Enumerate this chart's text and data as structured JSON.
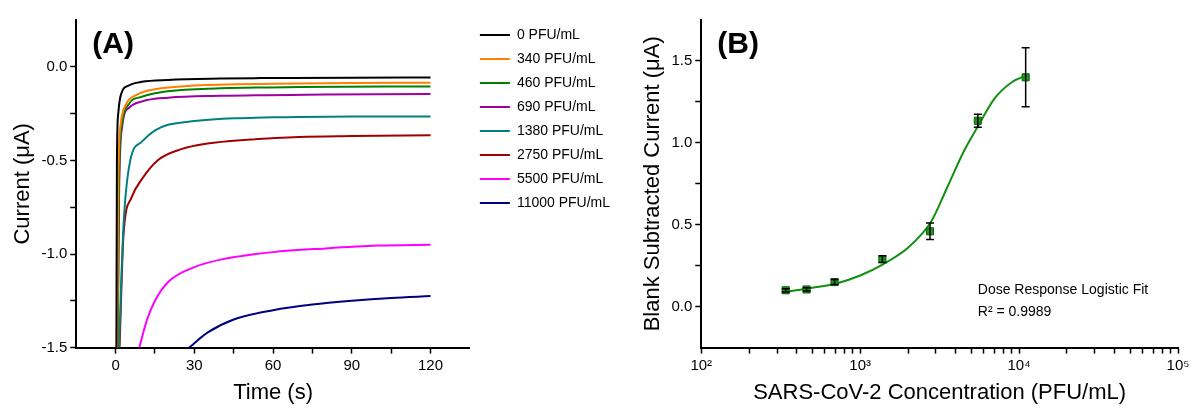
{
  "chart_data": [
    {
      "type": "line",
      "title": "(A)",
      "xlabel": "Time (s)",
      "ylabel": "Current (μA)",
      "xlim": [
        -15,
        135
      ],
      "xticks": [
        0,
        30,
        60,
        90,
        120,
        {
          "value": 15,
          "label": null
        },
        {
          "value": 45,
          "label": null
        },
        {
          "value": 75,
          "label": null
        },
        {
          "value": 105,
          "label": null
        }
      ],
      "ylim": [
        -1.5,
        0.25
      ],
      "yticks": [
        -1.5,
        {
          "value": -1,
          "label": "-1.0"
        },
        -0.5,
        {
          "value": 0,
          "label": "0.0"
        },
        {
          "value": -1.25,
          "label": null
        },
        {
          "value": -0.75,
          "label": null
        },
        {
          "value": -0.25,
          "label": null
        }
      ],
      "grid": false,
      "legend": "right",
      "marker": "none",
      "series": [
        {
          "name": "0 PFU/mL",
          "color": "#000000",
          "x": [
            0.3,
            0.5,
            1,
            2,
            5,
            10,
            20,
            40,
            60,
            90,
            120
          ],
          "values": [
            -1.5,
            -0.5,
            -0.25,
            -0.15,
            -0.1,
            -0.08,
            -0.07,
            -0.063,
            -0.06,
            -0.058,
            -0.057
          ]
        },
        {
          "name": "340 PFU/mL",
          "color": "#ff8000",
          "x": [
            0.6,
            1,
            2,
            4,
            8,
            15,
            30,
            60,
            90,
            120
          ],
          "values": [
            -1.5,
            -0.6,
            -0.3,
            -0.2,
            -0.15,
            -0.12,
            -0.1,
            -0.09,
            -0.087,
            -0.085
          ]
        },
        {
          "name": "460 PFU/mL",
          "color": "#008000",
          "x": [
            0.8,
            1.3,
            2.5,
            5,
            10,
            20,
            40,
            70,
            120
          ],
          "values": [
            -1.5,
            -0.6,
            -0.3,
            -0.2,
            -0.16,
            -0.13,
            -0.115,
            -0.108,
            -0.105
          ]
        },
        {
          "name": "690 PFU/mL",
          "color": "#a000a0",
          "x": [
            0.8,
            1.3,
            2.5,
            5,
            10,
            20,
            40,
            80,
            120
          ],
          "values": [
            -1.5,
            -0.7,
            -0.32,
            -0.22,
            -0.185,
            -0.165,
            -0.155,
            -0.148,
            -0.145
          ]
        },
        {
          "name": "1380 PFU/mL",
          "color": "#008080",
          "x": [
            1.3,
            3,
            5.6,
            10,
            15,
            20,
            30,
            45,
            60,
            90,
            120
          ],
          "values": [
            -1.5,
            -0.85,
            -0.5,
            -0.4,
            -0.34,
            -0.31,
            -0.29,
            -0.275,
            -0.27,
            -0.265,
            -0.265
          ]
        },
        {
          "name": "2750 PFU/mL",
          "color": "#a00000",
          "x": [
            1.5,
            3,
            6,
            10,
            16,
            25,
            35,
            50,
            70,
            90,
            120
          ],
          "values": [
            -1.5,
            -0.9,
            -0.7,
            -0.6,
            -0.5,
            -0.44,
            -0.41,
            -0.39,
            -0.375,
            -0.37,
            -0.365
          ]
        },
        {
          "name": "5500 PFU/mL",
          "color": "#ff00ff",
          "x": [
            9,
            12,
            15,
            20,
            30,
            40,
            60,
            80,
            100,
            120
          ],
          "values": [
            -1.5,
            -1.35,
            -1.25,
            -1.15,
            -1.07,
            -1.03,
            -0.99,
            -0.97,
            -0.955,
            -0.95
          ]
        },
        {
          "name": "11000 PFU/mL",
          "color": "#000080",
          "x": [
            28,
            35,
            45,
            60,
            75,
            90,
            105,
            120
          ],
          "values": [
            -1.5,
            -1.42,
            -1.35,
            -1.3,
            -1.27,
            -1.25,
            -1.235,
            -1.225
          ]
        }
      ]
    },
    {
      "type": "scatter",
      "title": "(B)",
      "xlabel": "SARS-CoV-2 Concentration (PFU/mL)",
      "ylabel": "Blank Subtracted Current (μA)",
      "log": "x",
      "xlim": [
        100,
        100000
      ],
      "xticks": [
        {
          "value": 100,
          "label": "10²"
        },
        {
          "value": 1000,
          "label": "10³"
        },
        {
          "value": 10000,
          "label": "10⁴"
        },
        {
          "value": 100000,
          "label": "10⁵"
        },
        {
          "value": 200,
          "label": null
        },
        {
          "value": 300,
          "label": null
        },
        {
          "value": 400,
          "label": null
        },
        {
          "value": 500,
          "label": null
        },
        {
          "value": 600,
          "label": null
        },
        {
          "value": 700,
          "label": null
        },
        {
          "value": 800,
          "label": null
        },
        {
          "value": 900,
          "label": null
        },
        {
          "value": 2000,
          "label": null
        },
        {
          "value": 3000,
          "label": null
        },
        {
          "value": 4000,
          "label": null
        },
        {
          "value": 5000,
          "label": null
        },
        {
          "value": 6000,
          "label": null
        },
        {
          "value": 7000,
          "label": null
        },
        {
          "value": 8000,
          "label": null
        },
        {
          "value": 9000,
          "label": null
        },
        {
          "value": 20000,
          "label": null
        },
        {
          "value": 30000,
          "label": null
        },
        {
          "value": 40000,
          "label": null
        },
        {
          "value": 50000,
          "label": null
        },
        {
          "value": 60000,
          "label": null
        },
        {
          "value": 70000,
          "label": null
        },
        {
          "value": 80000,
          "label": null
        },
        {
          "value": 90000,
          "label": null
        }
      ],
      "ylim": [
        -0.25,
        1.75
      ],
      "yticks": [
        {
          "value": 0,
          "label": "0.0"
        },
        0.5,
        {
          "value": 1,
          "label": "1.0"
        },
        1.5,
        {
          "value": 0.25,
          "label": null
        },
        {
          "value": 0.75,
          "label": null
        },
        {
          "value": 1.25,
          "label": null
        }
      ],
      "grid": false,
      "annotations": [
        "Dose Response Logistic Fit",
        "R² = 0.9989"
      ],
      "series": [
        {
          "type": "scatter",
          "marker": "square",
          "color": "#1a961a",
          "x": [
            340,
            460,
            690,
            1380,
            2750,
            5500,
            11000
          ],
          "values": [
            0.1,
            0.105,
            0.15,
            0.29,
            0.46,
            1.135,
            1.4
          ],
          "errors": [
            0.01,
            0.01,
            0.015,
            0.02,
            0.05,
            0.04,
            0.18
          ]
        },
        {
          "type": "line",
          "marker": "none",
          "color": "#109010",
          "x": [
            340,
            500,
            700,
            1000,
            1400,
            2000,
            2800,
            3500,
            4500,
            5500,
            7000,
            9000,
            11000
          ],
          "values": [
            0.09,
            0.115,
            0.14,
            0.19,
            0.26,
            0.36,
            0.52,
            0.72,
            0.95,
            1.1,
            1.27,
            1.37,
            1.41
          ]
        }
      ]
    }
  ]
}
